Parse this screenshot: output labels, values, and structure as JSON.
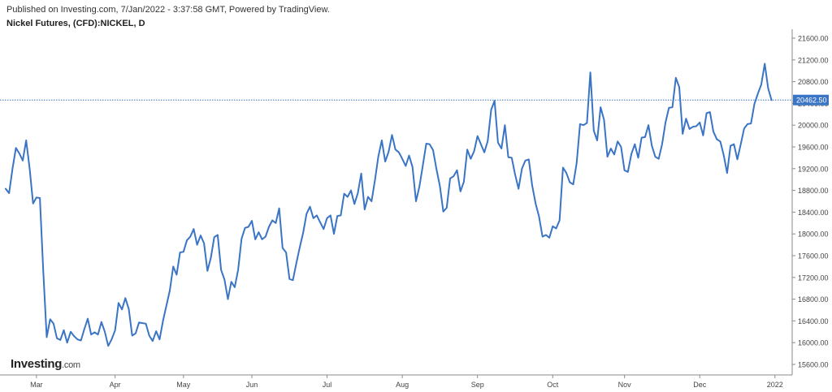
{
  "header": {
    "published": "Published on Investing.com, 7/Jan/2022 - 3:37:58 GMT, Powered by TradingView.",
    "title": "Nickel Futures, (CFD):NICKEL, D"
  },
  "logo": {
    "brand": "Investing",
    "suffix": ".com"
  },
  "colors": {
    "line": "#3a74c5",
    "last_price_label_bg": "#3a74c5",
    "last_price_line": "#3a74c5",
    "axis": "#555555"
  },
  "chart_data": {
    "type": "line",
    "title": "Nickel Futures, (CFD):NICKEL, D",
    "ylim": [
      15500,
      21700
    ],
    "y_ticks": [
      15600,
      16000,
      16400,
      16800,
      17200,
      17600,
      18000,
      18400,
      18800,
      19200,
      19600,
      20000,
      20400,
      20800,
      21200,
      21600
    ],
    "y_tick_labels": [
      "15600.00",
      "16000.00",
      "16400.00",
      "16800.00",
      "17200.00",
      "17600.00",
      "18000.00",
      "18400.00",
      "18800.00",
      "19200.00",
      "19600.00",
      "20000.00",
      "20400.00",
      "20800.00",
      "21200.00",
      "21600.00"
    ],
    "x_range": [
      0,
      226
    ],
    "x_ticks": [
      {
        "label": "Mar",
        "x": 9
      },
      {
        "label": "Apr",
        "x": 32
      },
      {
        "label": "May",
        "x": 52
      },
      {
        "label": "Jun",
        "x": 72
      },
      {
        "label": "Jul",
        "x": 94
      },
      {
        "label": "Aug",
        "x": 116
      },
      {
        "label": "Sep",
        "x": 138
      },
      {
        "label": "Oct",
        "x": 160
      },
      {
        "label": "Nov",
        "x": 181
      },
      {
        "label": "Dec",
        "x": 203
      },
      {
        "label": "2022",
        "x": 225
      }
    ],
    "last_price": 20462.5,
    "last_price_label": "20462.50",
    "grid": false,
    "series": [
      {
        "values": [
          18830,
          18750,
          19200,
          19580,
          19480,
          19350,
          19720,
          19200,
          18560,
          18670,
          18660,
          17300,
          16100,
          16430,
          16350,
          16080,
          16050,
          16230,
          16000,
          16200,
          16120,
          16060,
          16040,
          16250,
          16440,
          16150,
          16190,
          16150,
          16380,
          16200,
          15940,
          16060,
          16230,
          16730,
          16610,
          16820,
          16620,
          16130,
          16170,
          16370,
          16360,
          16350,
          16130,
          16030,
          16210,
          16060,
          16400,
          16680,
          16960,
          17400,
          17250,
          17660,
          17670,
          17880,
          17950,
          18090,
          17800,
          17970,
          17830,
          17320,
          17560,
          17940,
          17980,
          17340,
          17160,
          16800,
          17120,
          17020,
          17340,
          17910,
          18110,
          18130,
          18240,
          17900,
          18030,
          17900,
          17950,
          18130,
          18250,
          18200,
          18470,
          17740,
          17660,
          17170,
          17150,
          17460,
          17750,
          18020,
          18370,
          18500,
          18290,
          18340,
          18210,
          18090,
          18290,
          18340,
          18000,
          18330,
          18340,
          18740,
          18680,
          18800,
          18550,
          18750,
          19110,
          18450,
          18680,
          18600,
          18990,
          19430,
          19720,
          19330,
          19510,
          19820,
          19550,
          19500,
          19380,
          19250,
          19440,
          19230,
          18600,
          18870,
          19260,
          19660,
          19650,
          19540,
          19190,
          18880,
          18410,
          18480,
          19020,
          19060,
          19170,
          18780,
          18960,
          19550,
          19380,
          19520,
          19800,
          19650,
          19500,
          19710,
          20280,
          20450,
          19680,
          19570,
          20000,
          19410,
          19400,
          19090,
          18830,
          19200,
          19350,
          19370,
          18890,
          18560,
          18320,
          17950,
          17980,
          17930,
          18140,
          18100,
          18250,
          19220,
          19120,
          18950,
          18910,
          19300,
          20020,
          20000,
          20040,
          20970,
          19900,
          19720,
          20330,
          20100,
          19420,
          19570,
          19460,
          19700,
          19600,
          19170,
          19140,
          19470,
          19650,
          19400,
          19770,
          19780,
          20000,
          19620,
          19420,
          19380,
          19650,
          20050,
          20320,
          20330,
          20870,
          20700,
          19840,
          20120,
          19930,
          19970,
          19980,
          20050,
          19810,
          20220,
          20240,
          19880,
          19740,
          19700,
          19450,
          19120,
          19620,
          19650,
          19370,
          19650,
          19940,
          20020,
          20030,
          20390,
          20580,
          20750,
          21130,
          20680,
          20460
        ]
      }
    ]
  }
}
